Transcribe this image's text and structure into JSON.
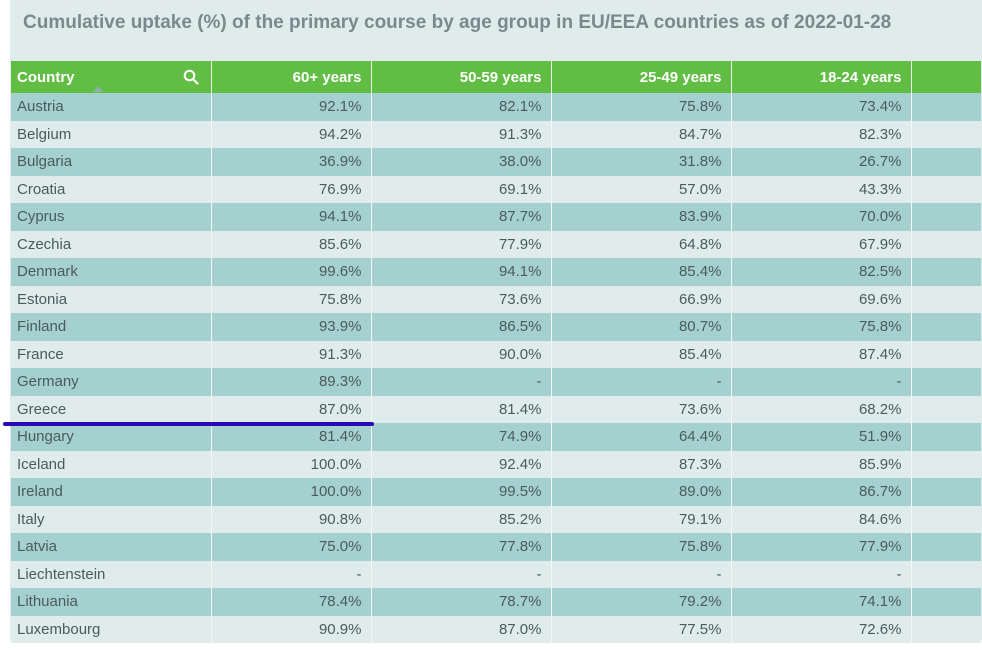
{
  "title": "Cumulative uptake (%) of the primary course by age group in EU/EEA countries as of 2022-01-28",
  "columns": [
    "Country",
    "60+ years",
    "50-59 years",
    "25-49 years",
    "18-24 years"
  ],
  "icons": {
    "search": "search-icon",
    "sort": "sort-ascending-icon"
  },
  "colors": {
    "header": "#62bd45",
    "row_odd": "#a5d0d0",
    "row_even": "#dfeceb",
    "underline": "#2a0ab8"
  },
  "rows": [
    [
      "Austria",
      "92.1%",
      "82.1%",
      "75.8%",
      "73.4%"
    ],
    [
      "Belgium",
      "94.2%",
      "91.3%",
      "84.7%",
      "82.3%"
    ],
    [
      "Bulgaria",
      "36.9%",
      "38.0%",
      "31.8%",
      "26.7%"
    ],
    [
      "Croatia",
      "76.9%",
      "69.1%",
      "57.0%",
      "43.3%"
    ],
    [
      "Cyprus",
      "94.1%",
      "87.7%",
      "83.9%",
      "70.0%"
    ],
    [
      "Czechia",
      "85.6%",
      "77.9%",
      "64.8%",
      "67.9%"
    ],
    [
      "Denmark",
      "99.6%",
      "94.1%",
      "85.4%",
      "82.5%"
    ],
    [
      "Estonia",
      "75.8%",
      "73.6%",
      "66.9%",
      "69.6%"
    ],
    [
      "Finland",
      "93.9%",
      "86.5%",
      "80.7%",
      "75.8%"
    ],
    [
      "France",
      "91.3%",
      "90.0%",
      "85.4%",
      "87.4%"
    ],
    [
      "Germany",
      "89.3%",
      "-",
      "-",
      "-"
    ],
    [
      "Greece",
      "87.0%",
      "81.4%",
      "73.6%",
      "68.2%"
    ],
    [
      "Hungary",
      "81.4%",
      "74.9%",
      "64.4%",
      "51.9%"
    ],
    [
      "Iceland",
      "100.0%",
      "92.4%",
      "87.3%",
      "85.9%"
    ],
    [
      "Ireland",
      "100.0%",
      "99.5%",
      "89.0%",
      "86.7%"
    ],
    [
      "Italy",
      "90.8%",
      "85.2%",
      "79.1%",
      "84.6%"
    ],
    [
      "Latvia",
      "75.0%",
      "77.8%",
      "75.8%",
      "77.9%"
    ],
    [
      "Liechtenstein",
      "-",
      "-",
      "-",
      "-"
    ],
    [
      "Lithuania",
      "78.4%",
      "78.7%",
      "79.2%",
      "74.1%"
    ],
    [
      "Luxembourg",
      "90.9%",
      "87.0%",
      "77.5%",
      "72.6%"
    ]
  ]
}
